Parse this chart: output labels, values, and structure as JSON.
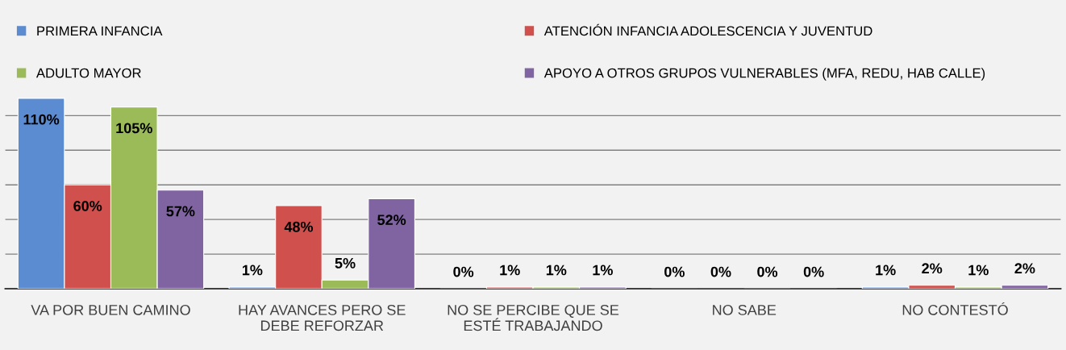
{
  "chart_data": {
    "type": "bar",
    "categories": [
      "VA POR BUEN CAMINO",
      "HAY AVANCES PERO SE\nDEBE REFORZAR",
      "NO SE PERCIBE QUE SE\nESTÉ TRABAJANDO",
      "NO SABE",
      "NO CONTESTÓ"
    ],
    "series": [
      {
        "name": "PRIMERA INFANCIA",
        "color": "#5b8bd0",
        "values": [
          110,
          1,
          0,
          0,
          1
        ],
        "value_labels": [
          "110%",
          "1%",
          "0%",
          "0%",
          "1%"
        ]
      },
      {
        "name": "ATENCIÓN INFANCIA ADOLESCENCIA Y JUVENTUD",
        "color": "#d0504d",
        "values": [
          60,
          48,
          1,
          0,
          2
        ],
        "value_labels": [
          "60%",
          "48%",
          "1%",
          "0%",
          "2%"
        ]
      },
      {
        "name": "ADULTO MAYOR",
        "color": "#9bbb59",
        "values": [
          105,
          5,
          1,
          0,
          1
        ],
        "value_labels": [
          "105%",
          "5%",
          "1%",
          "0%",
          "1%"
        ]
      },
      {
        "name": "APOYO A OTROS GRUPOS VULNERABLES (MFA, REDU, HAB CALLE)",
        "color": "#8064a2",
        "values": [
          57,
          52,
          1,
          0,
          2
        ],
        "value_labels": [
          "57%",
          "52%",
          "1%",
          "0%",
          "2%"
        ]
      }
    ],
    "tick_labels": "x",
    "grid": "y",
    "legend": "top"
  }
}
